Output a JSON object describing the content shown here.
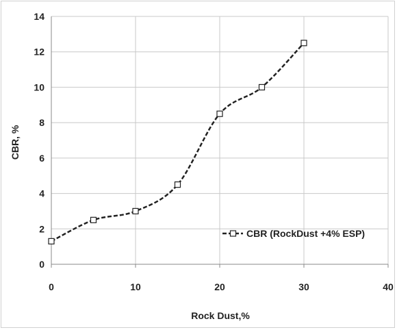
{
  "chart_data": {
    "type": "line",
    "xlabel": "Rock Dust,%",
    "ylabel": "CBR, %",
    "xlim": [
      0,
      40
    ],
    "ylim": [
      0,
      14
    ],
    "x_ticks": [
      "0",
      "10",
      "20",
      "30",
      "40"
    ],
    "y_ticks": [
      "0",
      "2",
      "4",
      "6",
      "8",
      "10",
      "12",
      "14"
    ],
    "grid": true,
    "legend_position": "right",
    "series": [
      {
        "name": "CBR (RockDust +4% ESP)",
        "marker": "square",
        "line_style": "dashed",
        "color": "#222222",
        "x": [
          0,
          5,
          10,
          15,
          20,
          25,
          30
        ],
        "y": [
          1.3,
          2.5,
          3.0,
          4.5,
          8.5,
          10.0,
          12.5
        ]
      }
    ]
  }
}
